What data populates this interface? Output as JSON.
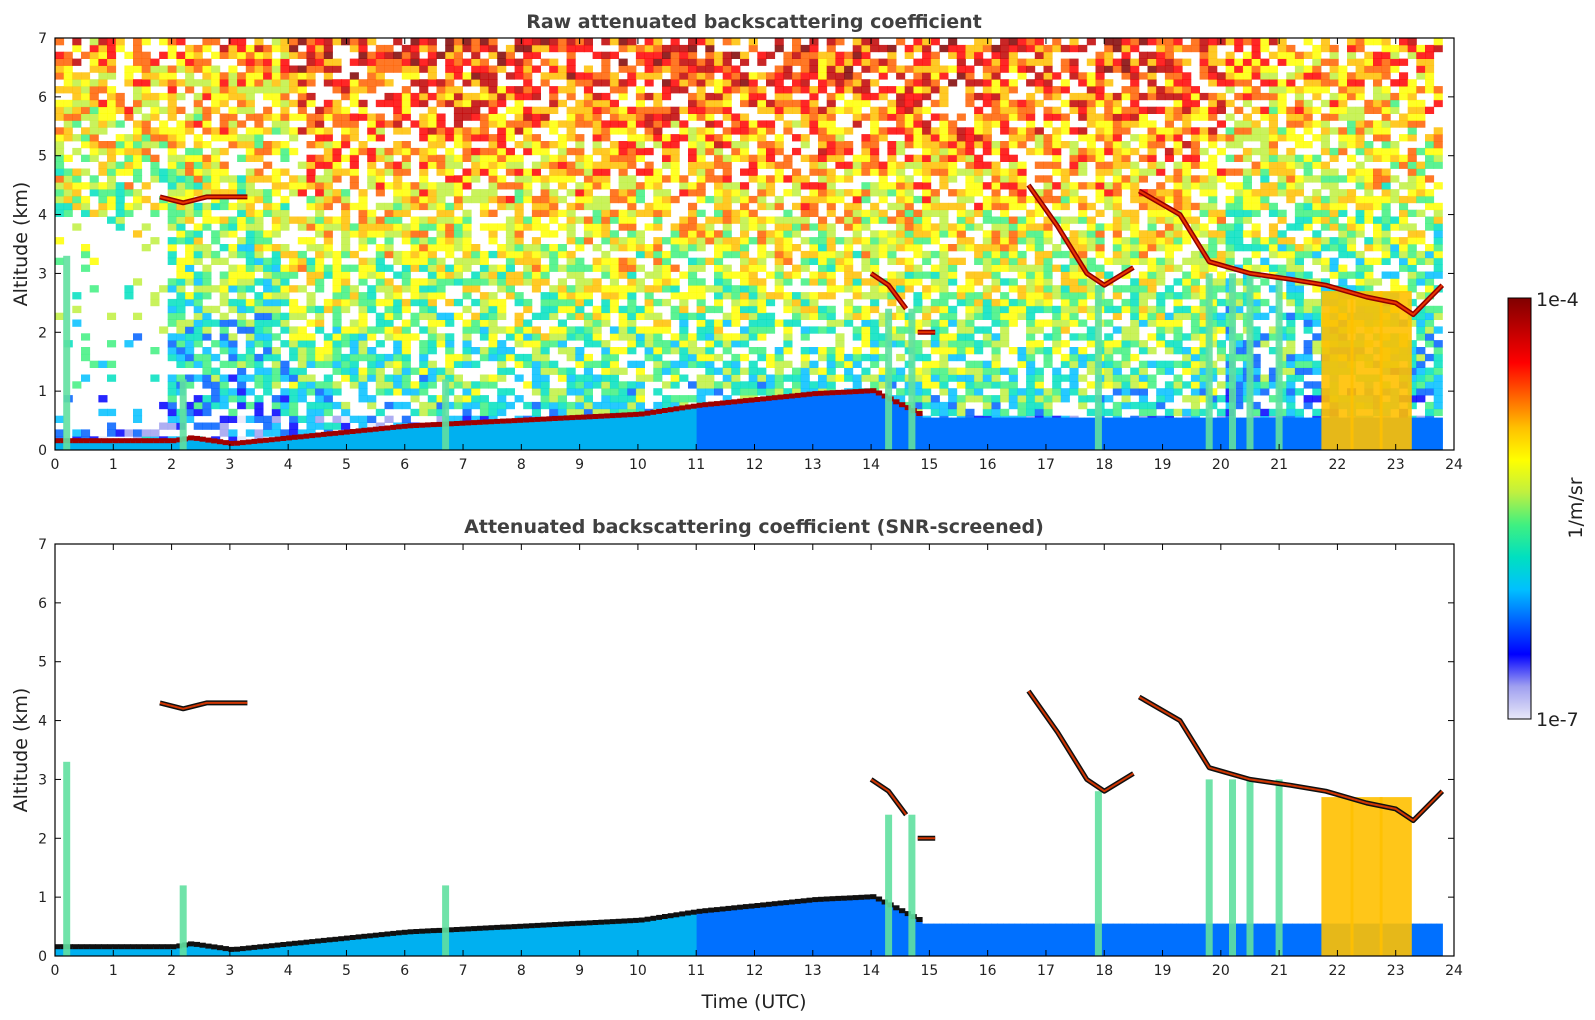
{
  "chart_data": [
    {
      "type": "heatmap",
      "title": "Raw attenuated backscattering coefficient",
      "xlabel": "",
      "ylabel": "Altitude (km)",
      "xlim": [
        0,
        24
      ],
      "ylim": [
        0,
        7
      ],
      "xticks": [
        "0",
        "1",
        "2",
        "3",
        "4",
        "5",
        "6",
        "7",
        "8",
        "9",
        "10",
        "11",
        "12",
        "13",
        "14",
        "15",
        "16",
        "17",
        "18",
        "19",
        "20",
        "21",
        "22",
        "23",
        "24"
      ],
      "yticks": [
        "0",
        "1",
        "2",
        "3",
        "4",
        "5",
        "6",
        "7"
      ],
      "grid": false,
      "boundary_layer_top_km": {
        "x": [
          0,
          1,
          2,
          2.3,
          3,
          4,
          5,
          6,
          7,
          8,
          9,
          10,
          11,
          12,
          13,
          14,
          14.8
        ],
        "y": [
          0.15,
          0.15,
          0.15,
          0.2,
          0.1,
          0.2,
          0.3,
          0.4,
          0.45,
          0.5,
          0.55,
          0.6,
          0.75,
          0.85,
          0.95,
          1.0,
          0.6
        ]
      },
      "cloud_layers_km": [
        {
          "x": [
            1.8,
            2.2,
            2.6,
            3.3
          ],
          "y": [
            4.3,
            4.2,
            4.3,
            4.3
          ]
        },
        {
          "x": [
            14.0,
            14.3,
            14.6
          ],
          "y": [
            3.0,
            2.8,
            2.4
          ]
        },
        {
          "x": [
            14.8,
            15.1
          ],
          "y": [
            2.0,
            2.0
          ]
        },
        {
          "x": [
            16.7,
            17.2,
            17.7,
            18.0,
            18.5
          ],
          "y": [
            4.5,
            3.8,
            3.0,
            2.8,
            3.1
          ]
        },
        {
          "x": [
            18.6,
            19.3,
            19.8,
            20.5,
            21.2,
            21.8,
            22.5,
            23.0,
            23.3,
            23.8
          ],
          "y": [
            4.4,
            4.0,
            3.2,
            3.0,
            2.9,
            2.8,
            2.6,
            2.5,
            2.3,
            2.8
          ]
        }
      ],
      "precipitation_columns_utc": [
        0.2,
        2.2,
        6.7,
        14.3,
        14.7,
        17.9,
        19.8,
        20.2,
        20.5,
        21.0,
        22.0,
        22.5,
        23.0
      ]
    },
    {
      "type": "heatmap",
      "title": "Attenuated backscattering coefficient (SNR-screened)",
      "xlabel": "Time (UTC)",
      "ylabel": "Altitude (km)",
      "xlim": [
        0,
        24
      ],
      "ylim": [
        0,
        7
      ],
      "xticks": [
        "0",
        "1",
        "2",
        "3",
        "4",
        "5",
        "6",
        "7",
        "8",
        "9",
        "10",
        "11",
        "12",
        "13",
        "14",
        "15",
        "16",
        "17",
        "18",
        "19",
        "20",
        "21",
        "22",
        "23",
        "24"
      ],
      "yticks": [
        "0",
        "1",
        "2",
        "3",
        "4",
        "5",
        "6",
        "7"
      ],
      "grid": false,
      "boundary_layer_top_km": {
        "x": [
          0,
          1,
          2,
          2.3,
          3,
          4,
          5,
          6,
          7,
          8,
          9,
          10,
          11,
          12,
          13,
          14,
          14.8
        ],
        "y": [
          0.15,
          0.15,
          0.15,
          0.2,
          0.1,
          0.2,
          0.3,
          0.4,
          0.45,
          0.5,
          0.55,
          0.6,
          0.75,
          0.85,
          0.95,
          1.0,
          0.6
        ]
      }
    }
  ],
  "colorbar": {
    "max_label": "1e-4",
    "min_label": "1e-7",
    "unit_label": "1/m/sr",
    "colormap": [
      "#e8e8f8",
      "#a0a0f0",
      "#0000ff",
      "#0060ff",
      "#00c0ff",
      "#00e0c0",
      "#40f080",
      "#c0f040",
      "#ffff00",
      "#ffc000",
      "#ff6000",
      "#ff0000",
      "#c00000",
      "#800000"
    ]
  }
}
